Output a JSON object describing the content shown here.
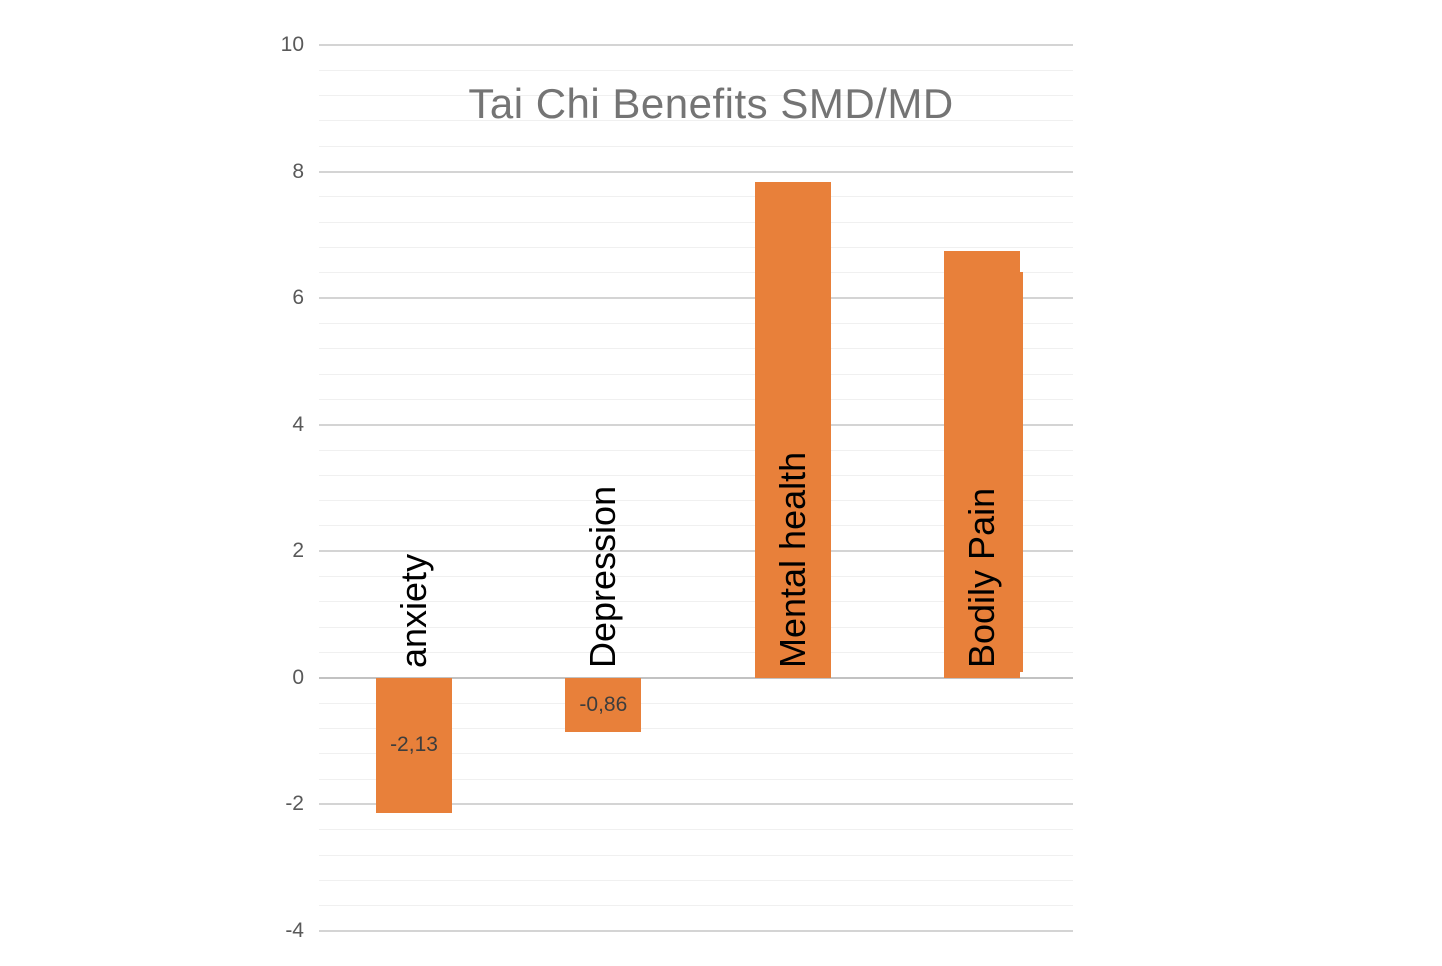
{
  "chart_data": {
    "type": "bar",
    "title": "Tai Chi Benefits SMD/MD",
    "categories": [
      "anxiety",
      "Depression",
      "Mental health",
      "Bodily Pain"
    ],
    "values": [
      -2.13,
      -0.86,
      7.83,
      6.75
    ],
    "series": [
      {
        "name": "SMD/MD",
        "values": [
          -2.13,
          -0.86,
          7.83,
          6.75
        ]
      }
    ],
    "data_labels": [
      "-2,13",
      "-0,86",
      null,
      null
    ],
    "decimal_separator": ",",
    "xlabel": "",
    "ylabel": "",
    "ylim": [
      -4,
      10
    ],
    "y_major_unit": 2,
    "y_minor_unit": 0.4,
    "y_tick_values": [
      10,
      8,
      6,
      4,
      2,
      0,
      -2,
      -4
    ],
    "y_tick_labels": [
      "10",
      "8",
      "6",
      "4",
      "2",
      "0",
      "-2",
      "-4"
    ],
    "grid": "horizontal major and minor gridlines, no vertical gridlines, no axis lines",
    "legend": "none",
    "secondary_overlay_bar": {
      "category": "Bodily Pain",
      "from": 0.1,
      "to": 6.42,
      "note": "thin duplicate bar sliver peeking out on the right edge of the Bodily Pain bar"
    },
    "colors": {
      "background": "#FFFFFF",
      "bar_fill": "#E8803A",
      "title_text": "#747474",
      "tick_label_text": "#595959",
      "category_label_text": "#000000",
      "data_label_text": "#3D3D3D",
      "major_gridline": "#D4D4D4",
      "minor_gridline": "#F0F0F0",
      "zero_line": "#C2C2C2"
    }
  }
}
